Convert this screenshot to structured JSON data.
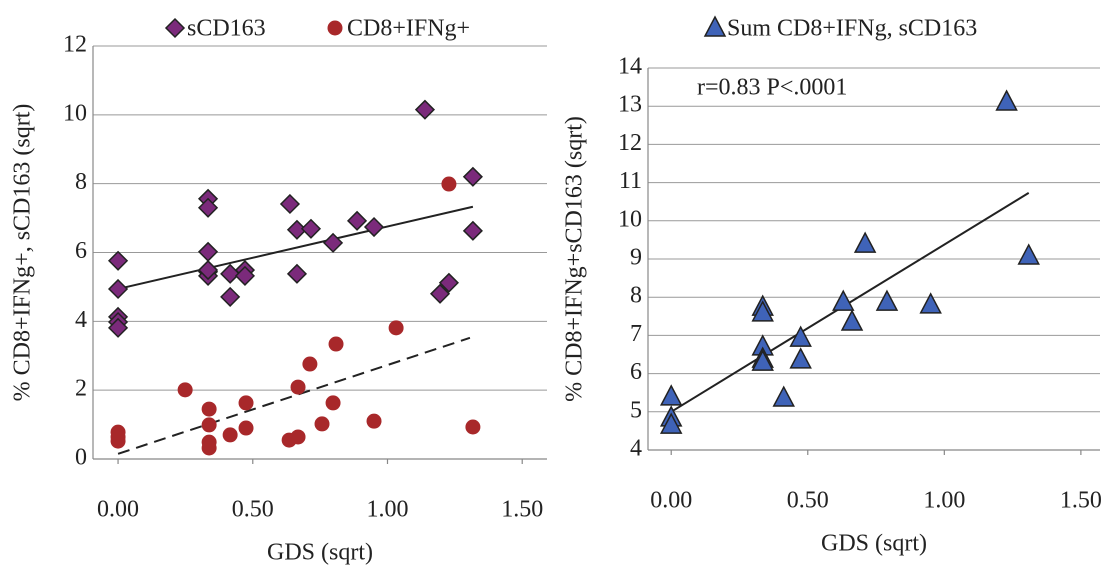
{
  "chart_data": [
    {
      "type": "scatter",
      "x_label": "GDS (sqrt)",
      "y_label": "% CD8+IFNg+, sCD163 (sqrt)",
      "xlim": [
        -0.093,
        1.592
      ],
      "ylim": [
        0,
        12
      ],
      "xticks": [
        {
          "value": 0,
          "label": "0.00"
        },
        {
          "value": 0.5,
          "label": "0.50"
        },
        {
          "value": 1,
          "label": "1.00"
        },
        {
          "value": 1.5,
          "label": "1.50"
        }
      ],
      "yticks": [
        0,
        2,
        4,
        6,
        8,
        10,
        12
      ],
      "grid": true,
      "series": [
        {
          "name": "sCD163",
          "color": "#7b2a7b",
          "marker": "diamond",
          "x": [
            0,
            0,
            0,
            0,
            0,
            0.334,
            0.334,
            0.334,
            0.334,
            0.334,
            0.334,
            0.416,
            0.416,
            0.471,
            0.471,
            0.638,
            0.664,
            0.664,
            0.716,
            0.798,
            0.887,
            0.95,
            1.139,
            1.195,
            1.228,
            1.317,
            1.317
          ],
          "values": [
            5.76,
            4.94,
            4.13,
            3.98,
            3.81,
            7.56,
            7.3,
            6.02,
            5.44,
            5.32,
            5.49,
            4.71,
            5.38,
            5.49,
            5.32,
            7.41,
            6.66,
            5.38,
            6.69,
            6.28,
            6.92,
            6.74,
            10.15,
            4.8,
            5.12,
            8.2,
            6.63
          ],
          "trendline": {
            "x": [
              0,
              1.317
            ],
            "y": [
              4.94,
              7.33
            ],
            "style": "solid"
          }
        },
        {
          "name": "CD8+IFNg+",
          "color": "#a8282a",
          "marker": "circle",
          "x": [
            0,
            0,
            0,
            0.249,
            0.338,
            0.338,
            0.338,
            0.338,
            0.416,
            0.475,
            0.475,
            0.635,
            0.668,
            0.668,
            0.712,
            0.757,
            0.798,
            0.809,
            0.95,
            1.032,
            1.228,
            1.317
          ],
          "values": [
            0.78,
            0.64,
            0.52,
            2.01,
            1.45,
            0.99,
            0.49,
            0.32,
            0.7,
            1.63,
            0.9,
            0.55,
            2.09,
            0.64,
            2.76,
            1.02,
            1.63,
            3.34,
            1.1,
            3.81,
            7.99,
            0.93
          ],
          "trendline": {
            "x": [
              0,
              1.306
            ],
            "y": [
              0.15,
              3.52
            ],
            "style": "dashed"
          }
        }
      ]
    },
    {
      "type": "scatter",
      "x_label": "GDS (sqrt)",
      "y_label": "% CD8+IFNg+sCD163 (sqrt)",
      "annotation": "r=0.83  P<.0001",
      "xlim": [
        -0.085,
        1.57
      ],
      "ylim": [
        4,
        14
      ],
      "xticks": [
        {
          "value": 0,
          "label": "0.00"
        },
        {
          "value": 0.5,
          "label": "0.50"
        },
        {
          "value": 1,
          "label": "1.00"
        },
        {
          "value": 1.5,
          "label": "1.50"
        }
      ],
      "yticks": [
        4,
        5,
        6,
        7,
        8,
        9,
        10,
        11,
        12,
        13,
        14
      ],
      "grid": true,
      "series": [
        {
          "name": "Sum CD8+IFNg, sCD163",
          "color": "#3f63b8",
          "marker": "triangle",
          "x": [
            0,
            0,
            0,
            0.335,
            0.335,
            0.335,
            0.335,
            0.335,
            0.474,
            0.474,
            0.412,
            0.63,
            0.662,
            0.71,
            0.79,
            0.95,
            1.228,
            1.309
          ],
          "values": [
            5.39,
            4.84,
            4.65,
            7.74,
            7.59,
            6.7,
            6.38,
            6.3,
            6.93,
            6.36,
            5.36,
            7.87,
            7.35,
            9.39,
            7.87,
            7.8,
            13.11,
            9.08
          ],
          "trendline": {
            "x": [
              0,
              1.309
            ],
            "y": [
              5.0,
              10.73
            ],
            "style": "solid"
          }
        }
      ]
    }
  ]
}
